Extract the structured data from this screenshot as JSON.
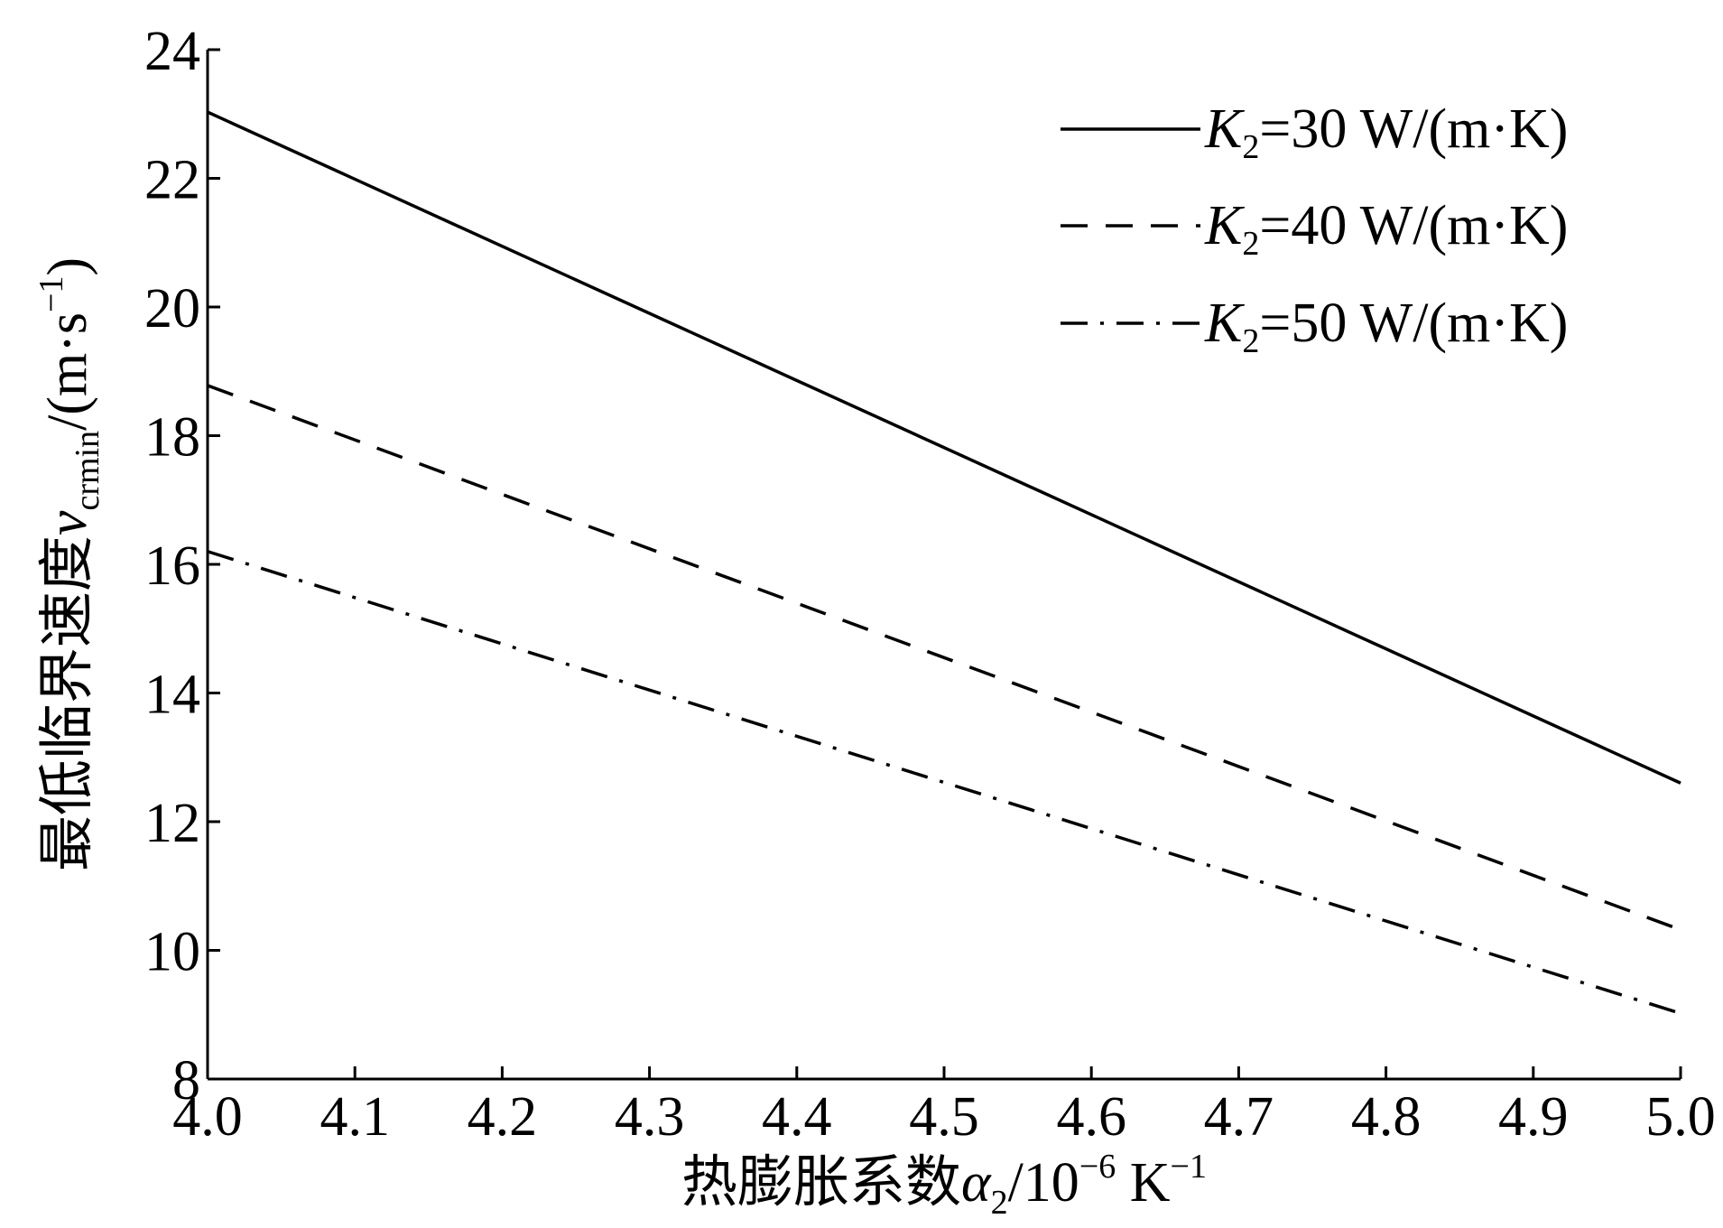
{
  "chart_data": {
    "type": "line",
    "xlabel": {
      "prefix": "热膨胀系数",
      "var": "α",
      "var_sub": "2",
      "unit_pre": "/10",
      "unit_exp": "−6",
      "unit_mid": " K",
      "unit_exp2": "−1"
    },
    "ylabel": {
      "prefix": "最低临界速度",
      "var": "v",
      "var_sub": "crmin",
      "unit_pre": "/(m·s",
      "unit_exp": "−1",
      "unit_post": ")"
    },
    "xlim": [
      4.0,
      5.0
    ],
    "ylim": [
      8,
      24
    ],
    "xticks": [
      "4.0",
      "4.1",
      "4.2",
      "4.3",
      "4.4",
      "4.5",
      "4.6",
      "4.7",
      "4.8",
      "4.9",
      "5.0"
    ],
    "yticks": [
      "8",
      "10",
      "12",
      "14",
      "16",
      "18",
      "20",
      "22",
      "24"
    ],
    "grid": false,
    "legend_position": "top-right",
    "series": [
      {
        "legend": {
          "var": "K",
          "sub": "2",
          "text": "=30 W/(m·K)"
        },
        "style": "solid",
        "x": [
          4.0,
          5.0
        ],
        "values": [
          23.03,
          12.6
        ]
      },
      {
        "legend": {
          "var": "K",
          "sub": "2",
          "text": "=40 W/(m·K)"
        },
        "style": "dashed",
        "x": [
          4.0,
          5.0
        ],
        "values": [
          18.78,
          10.32
        ]
      },
      {
        "legend": {
          "var": "K",
          "sub": "2",
          "text": "=50 W/(m·K)"
        },
        "style": "dashdot",
        "x": [
          4.0,
          5.0
        ],
        "values": [
          16.2,
          9.02
        ]
      }
    ]
  }
}
